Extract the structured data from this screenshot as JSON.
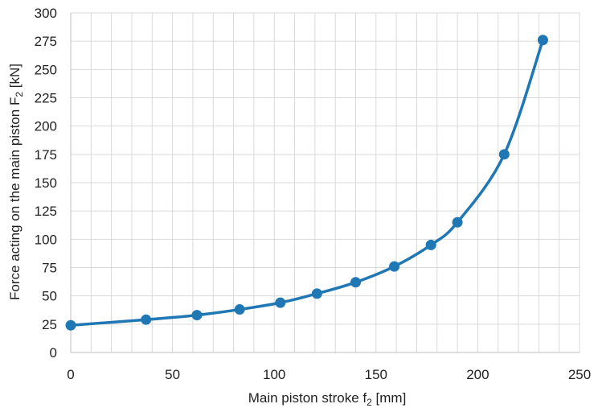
{
  "chart_data": {
    "type": "scatter",
    "xlabel": "Main piston stroke f",
    "xlabel_sub": "2",
    "xlabel_unit": " [mm]",
    "ylabel": "Force acting on the main piston F",
    "ylabel_sub": "2",
    "ylabel_unit": " [kN]",
    "xlim": [
      0,
      250
    ],
    "ylim": [
      0,
      300
    ],
    "x_ticks": [
      0,
      50,
      100,
      150,
      200,
      250
    ],
    "y_ticks": [
      0,
      25,
      50,
      75,
      100,
      125,
      150,
      175,
      200,
      225,
      250,
      275,
      300
    ],
    "x_minor_step": 10,
    "grid": true,
    "legend": "none",
    "series_color": "#1f77b4",
    "smoothed_line": true,
    "series": [
      {
        "x": [
          0,
          37,
          62,
          83,
          103,
          121,
          140,
          159,
          177,
          190,
          213,
          232
        ],
        "y": [
          24,
          29,
          33,
          38,
          44,
          52,
          62,
          76,
          95,
          115,
          175,
          276
        ]
      }
    ]
  }
}
